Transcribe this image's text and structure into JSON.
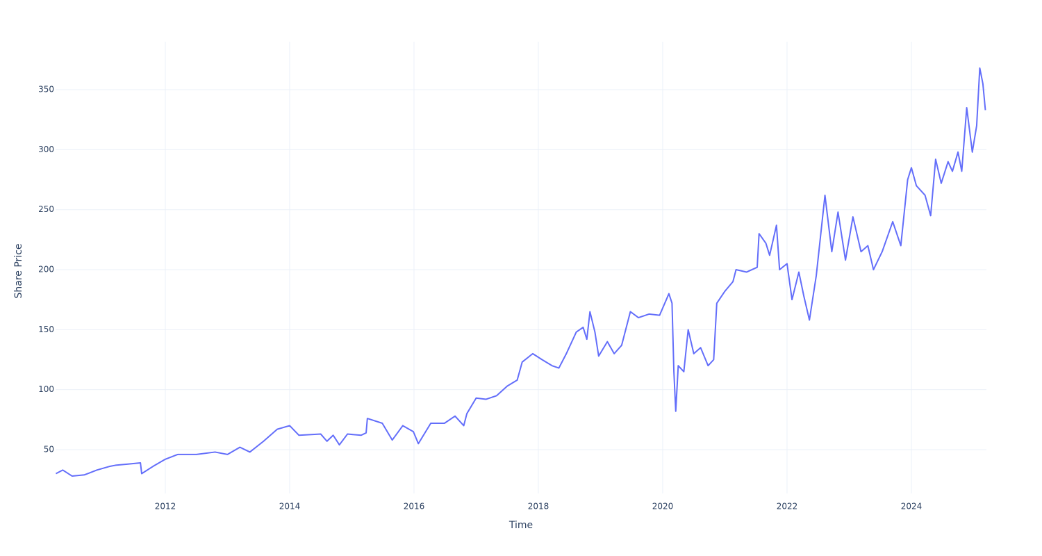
{
  "chart_data": {
    "type": "line",
    "x_label": "Time",
    "y_label": "Share Price",
    "x": [
      2010.24,
      2010.35,
      2010.5,
      2010.7,
      2010.9,
      2011.1,
      2011.2,
      2011.4,
      2011.6,
      2011.62,
      2011.8,
      2012.0,
      2012.2,
      2012.5,
      2012.8,
      2013.0,
      2013.2,
      2013.36,
      2013.58,
      2013.8,
      2014.0,
      2014.15,
      2014.5,
      2014.6,
      2014.7,
      2014.8,
      2014.93,
      2015.15,
      2015.23,
      2015.25,
      2015.49,
      2015.65,
      2015.82,
      2015.99,
      2016.07,
      2016.27,
      2016.49,
      2016.66,
      2016.8,
      2016.85,
      2017.0,
      2017.16,
      2017.33,
      2017.5,
      2017.66,
      2017.74,
      2017.91,
      2018.06,
      2018.22,
      2018.33,
      2018.45,
      2018.61,
      2018.72,
      2018.78,
      2018.83,
      2018.91,
      2018.97,
      2019.11,
      2019.22,
      2019.34,
      2019.48,
      2019.61,
      2019.78,
      2019.95,
      2020.1,
      2020.15,
      2020.18,
      2020.21,
      2020.25,
      2020.34,
      2020.41,
      2020.5,
      2020.61,
      2020.73,
      2020.82,
      2020.87,
      2021.0,
      2021.13,
      2021.18,
      2021.35,
      2021.52,
      2021.55,
      2021.66,
      2021.72,
      2021.83,
      2021.88,
      2022.0,
      2022.08,
      2022.19,
      2022.27,
      2022.36,
      2022.47,
      2022.61,
      2022.72,
      2022.82,
      2022.94,
      2023.06,
      2023.19,
      2023.3,
      2023.39,
      2023.53,
      2023.7,
      2023.83,
      2023.94,
      2024.0,
      2024.08,
      2024.22,
      2024.31,
      2024.39,
      2024.48,
      2024.59,
      2024.66,
      2024.75,
      2024.81,
      2024.89,
      2024.98,
      2025.05,
      2025.1,
      2025.15,
      2025.19
    ],
    "series": [
      {
        "color": "#636efa",
        "values": [
          30,
          33,
          28,
          29,
          33,
          36,
          37,
          38,
          39,
          30,
          36,
          42,
          46,
          46,
          48,
          46,
          52,
          48,
          57,
          67,
          70,
          62,
          63,
          57,
          62,
          54,
          63,
          62,
          64,
          76,
          72,
          58,
          70,
          65,
          55,
          72,
          72,
          78,
          70,
          80,
          93,
          92,
          95,
          103,
          108,
          123,
          130,
          125,
          120,
          118,
          130,
          148,
          152,
          142,
          165,
          148,
          128,
          140,
          130,
          137,
          165,
          160,
          163,
          162,
          180,
          172,
          115,
          82,
          120,
          115,
          150,
          130,
          135,
          120,
          125,
          172,
          182,
          190,
          200,
          198,
          202,
          230,
          222,
          212,
          237,
          200,
          205,
          175,
          198,
          178,
          158,
          195,
          262,
          215,
          248,
          208,
          244,
          215,
          220,
          200,
          215,
          240,
          220,
          275,
          285,
          270,
          262,
          245,
          292,
          272,
          290,
          282,
          298,
          282,
          335,
          298,
          320,
          368,
          355,
          333
        ]
      }
    ],
    "xlim": [
      2010.235,
      2025.207
    ],
    "xticks": [
      2012,
      2014,
      2016,
      2018,
      2020,
      2022,
      2024
    ],
    "ylim": [
      13.5,
      390
    ],
    "yticks": [
      50,
      100,
      150,
      200,
      250,
      300,
      350
    ],
    "grid": true
  }
}
